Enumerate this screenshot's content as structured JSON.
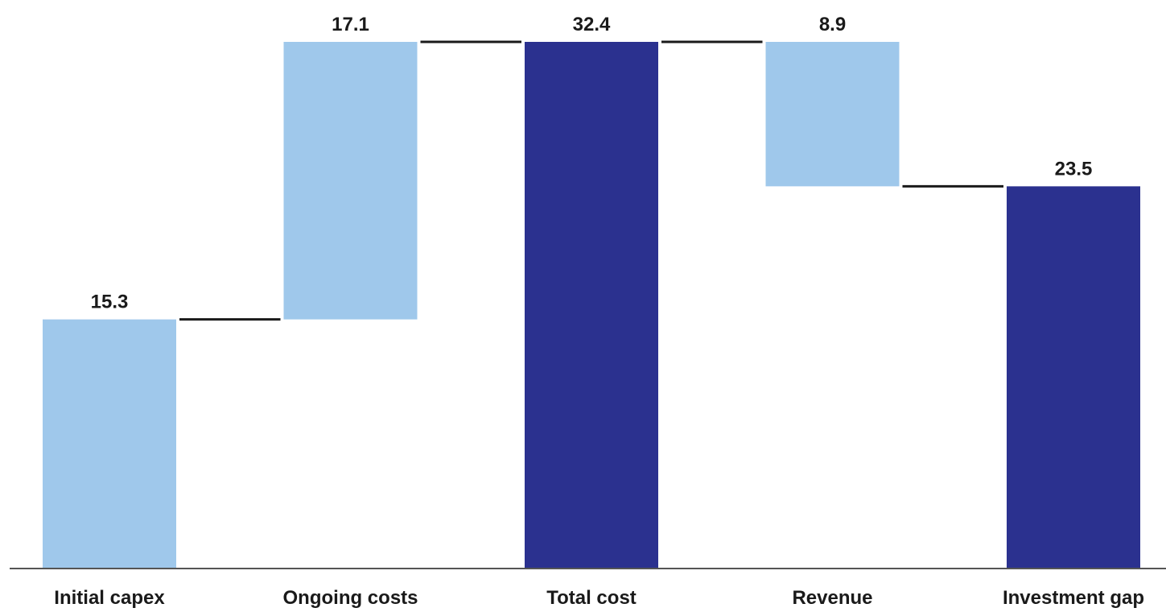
{
  "chart_data": {
    "type": "bar",
    "subtype": "waterfall",
    "categories": [
      "Initial capex",
      "Ongoing costs",
      "Total cost",
      "Revenue",
      "Investment gap"
    ],
    "values": [
      15.3,
      17.1,
      32.4,
      8.9,
      23.5
    ],
    "steps": [
      {
        "name": "Initial capex",
        "value": 15.3,
        "kind": "increase",
        "label": "15.3"
      },
      {
        "name": "Ongoing costs",
        "value": 17.1,
        "kind": "increase",
        "label": "17.1"
      },
      {
        "name": "Total cost",
        "value": 32.4,
        "kind": "total",
        "label": "32.4"
      },
      {
        "name": "Revenue",
        "value": 8.9,
        "kind": "decrease",
        "label": "8.9"
      },
      {
        "name": "Investment gap",
        "value": 23.5,
        "kind": "total",
        "label": "23.5"
      }
    ],
    "ylim": [
      0,
      32.4
    ],
    "grid": false,
    "legend": "none",
    "colors": {
      "change": "#9fc8eb",
      "total": "#2b318f",
      "connector": "#1a1a1a",
      "baseline": "#555555"
    }
  }
}
